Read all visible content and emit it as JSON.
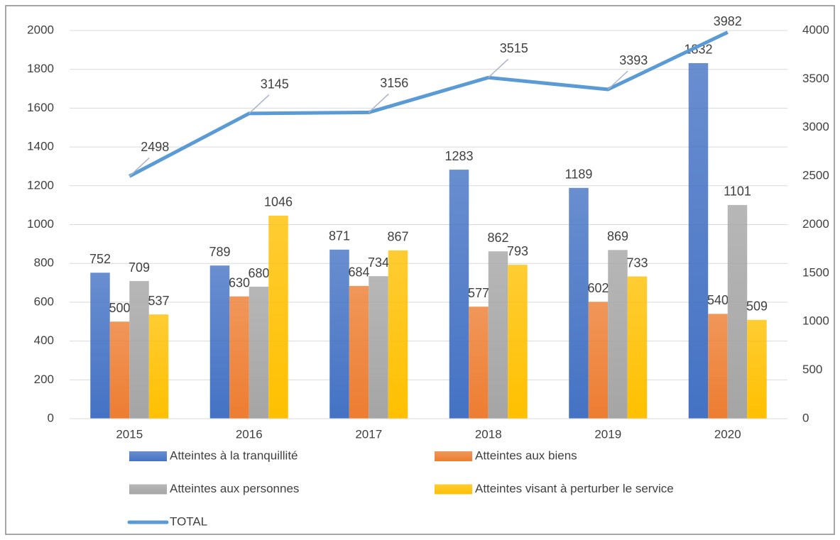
{
  "chart_data": {
    "type": "bar_line",
    "categories": [
      "2015",
      "2016",
      "2017",
      "2018",
      "2019",
      "2020"
    ],
    "series": [
      {
        "name": "Atteintes à la tranquillité",
        "color": "#4472c4",
        "values": [
          752,
          789,
          871,
          1283,
          1189,
          1832
        ]
      },
      {
        "name": "Atteintes aux biens",
        "color": "#ed7d31",
        "values": [
          500,
          630,
          684,
          577,
          602,
          540
        ]
      },
      {
        "name": "Atteintes aux personnes",
        "color": "#a5a5a5",
        "values": [
          709,
          680,
          734,
          862,
          869,
          1101
        ]
      },
      {
        "name": "Atteintes visant à perturber le service",
        "color": "#ffc000",
        "values": [
          537,
          1046,
          867,
          793,
          733,
          509
        ]
      },
      {
        "name": "TOTAL",
        "color": "#5b9bd5",
        "axis": "y2",
        "type": "line",
        "values": [
          2498,
          3145,
          3156,
          3515,
          3393,
          3982
        ]
      }
    ],
    "ylim": [
      0,
      2000
    ],
    "yticks": [
      0,
      200,
      400,
      600,
      800,
      1000,
      1200,
      1400,
      1600,
      1800,
      2000
    ],
    "y2lim": [
      0,
      4000
    ],
    "y2ticks": [
      0,
      500,
      1000,
      1500,
      2000,
      2500,
      3000,
      3500,
      4000
    ],
    "legend": "bottom"
  }
}
